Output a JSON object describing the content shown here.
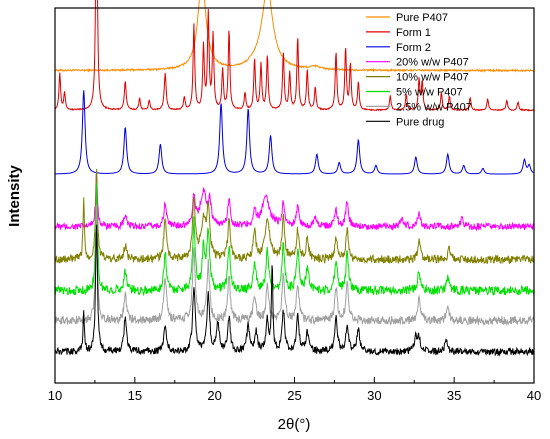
{
  "chart_data": {
    "type": "line",
    "title": "",
    "xlabel": "2θ(°)",
    "ylabel": "Intensity",
    "xlim": [
      10,
      40
    ],
    "xticks": [
      "10",
      "15",
      "20",
      "25",
      "30",
      "35",
      "40"
    ],
    "y_ticks_shown": false,
    "grid": false,
    "legend_position": "top-right",
    "series": [
      {
        "name": "Pure P407",
        "color": "#FF8C00",
        "baseline": 2.2,
        "noise": 0.03,
        "peaks": [
          [
            19.2,
            3.2,
            0.3
          ],
          [
            23.3,
            2.85,
            0.42
          ],
          [
            26.3,
            0.1,
            0.4
          ],
          [
            22.5,
            0.12,
            0.4
          ]
        ]
      },
      {
        "name": "Form 1",
        "color": "#E00000",
        "baseline": 3.6,
        "noise": 0.02,
        "peaks": [
          [
            10.3,
            1.3,
            0.06
          ],
          [
            10.6,
            0.6,
            0.06
          ],
          [
            12.6,
            8.75,
            0.06
          ],
          [
            14.4,
            1.0,
            0.07
          ],
          [
            15.3,
            0.4,
            0.06
          ],
          [
            15.9,
            0.35,
            0.06
          ],
          [
            16.9,
            1.3,
            0.07
          ],
          [
            18.1,
            0.45,
            0.06
          ],
          [
            18.7,
            3.0,
            0.06
          ],
          [
            19.3,
            2.2,
            0.06
          ],
          [
            19.6,
            3.35,
            0.06
          ],
          [
            19.9,
            2.6,
            0.06
          ],
          [
            20.5,
            1.4,
            0.06
          ],
          [
            20.9,
            2.8,
            0.06
          ],
          [
            21.9,
            0.6,
            0.06
          ],
          [
            22.5,
            1.8,
            0.06
          ],
          [
            22.9,
            1.6,
            0.06
          ],
          [
            23.3,
            1.9,
            0.06
          ],
          [
            24.3,
            2.0,
            0.06
          ],
          [
            24.7,
            1.3,
            0.06
          ],
          [
            25.2,
            2.55,
            0.06
          ],
          [
            25.8,
            1.4,
            0.06
          ],
          [
            26.3,
            0.8,
            0.06
          ],
          [
            27.6,
            2.05,
            0.06
          ],
          [
            28.2,
            2.15,
            0.06
          ],
          [
            28.5,
            1.6,
            0.06
          ],
          [
            29.0,
            1.0,
            0.06
          ],
          [
            31.0,
            0.5,
            0.06
          ],
          [
            32.0,
            0.55,
            0.06
          ],
          [
            32.8,
            1.05,
            0.06
          ],
          [
            33.0,
            1.0,
            0.06
          ],
          [
            34.2,
            0.6,
            0.06
          ],
          [
            34.7,
            0.5,
            0.06
          ],
          [
            36.0,
            0.45,
            0.06
          ],
          [
            37.1,
            0.4,
            0.06
          ],
          [
            38.3,
            0.35,
            0.06
          ],
          [
            39.0,
            0.3,
            0.06
          ]
        ]
      },
      {
        "name": "Form 2",
        "color": "#0000E0",
        "baseline": 5.85,
        "noise": 0.0,
        "peaks": [
          [
            11.8,
            2.95,
            0.1
          ],
          [
            14.4,
            1.65,
            0.1
          ],
          [
            16.6,
            1.05,
            0.1
          ],
          [
            20.4,
            2.5,
            0.1
          ],
          [
            22.1,
            2.3,
            0.1
          ],
          [
            23.5,
            1.35,
            0.1
          ],
          [
            26.4,
            0.7,
            0.1
          ],
          [
            27.8,
            0.4,
            0.1
          ],
          [
            29.0,
            1.2,
            0.1
          ],
          [
            30.1,
            0.3,
            0.1
          ],
          [
            32.6,
            0.6,
            0.1
          ],
          [
            34.6,
            0.7,
            0.1
          ],
          [
            35.6,
            0.3,
            0.1
          ],
          [
            36.8,
            0.2,
            0.1
          ],
          [
            39.4,
            0.5,
            0.1
          ],
          [
            39.7,
            0.3,
            0.1
          ]
        ]
      },
      {
        "name": "20% w/w P407",
        "color": "#FF00FF",
        "baseline": 7.7,
        "noise": 0.12,
        "peaks": [
          [
            12.6,
            1.9,
            0.07
          ],
          [
            14.4,
            0.4,
            0.1
          ],
          [
            16.9,
            0.8,
            0.1
          ],
          [
            18.7,
            1.0,
            0.1
          ],
          [
            19.3,
            1.2,
            0.25
          ],
          [
            19.7,
            0.7,
            0.1
          ],
          [
            20.9,
            0.9,
            0.1
          ],
          [
            22.5,
            0.5,
            0.1
          ],
          [
            23.2,
            1.0,
            0.3
          ],
          [
            24.3,
            0.8,
            0.1
          ],
          [
            25.2,
            0.7,
            0.1
          ],
          [
            26.3,
            0.4,
            0.1
          ],
          [
            27.6,
            0.6,
            0.1
          ],
          [
            28.3,
            0.9,
            0.1
          ],
          [
            31.7,
            0.3,
            0.1
          ],
          [
            32.8,
            0.5,
            0.1
          ],
          [
            35.5,
            0.3,
            0.1
          ]
        ]
      },
      {
        "name": "10% w/w P407",
        "color": "#808000",
        "baseline": 8.85,
        "noise": 0.14,
        "peaks": [
          [
            11.8,
            2.2,
            0.05
          ],
          [
            12.6,
            3.2,
            0.07
          ],
          [
            14.4,
            0.5,
            0.1
          ],
          [
            16.9,
            1.4,
            0.1
          ],
          [
            18.7,
            2.0,
            0.1
          ],
          [
            19.3,
            1.3,
            0.2
          ],
          [
            19.6,
            1.7,
            0.1
          ],
          [
            20.9,
            1.3,
            0.1
          ],
          [
            22.5,
            0.9,
            0.1
          ],
          [
            23.3,
            1.3,
            0.2
          ],
          [
            24.3,
            1.4,
            0.1
          ],
          [
            25.2,
            1.0,
            0.1
          ],
          [
            25.8,
            0.7,
            0.1
          ],
          [
            27.6,
            0.7,
            0.1
          ],
          [
            28.3,
            1.0,
            0.1
          ],
          [
            32.8,
            0.6,
            0.1
          ],
          [
            34.7,
            0.4,
            0.1
          ]
        ]
      },
      {
        "name": "5% w/w P407",
        "color": "#00E000",
        "baseline": 9.95,
        "noise": 0.16,
        "peaks": [
          [
            12.6,
            3.7,
            0.07
          ],
          [
            14.4,
            0.7,
            0.1
          ],
          [
            16.9,
            1.3,
            0.1
          ],
          [
            18.7,
            2.4,
            0.1
          ],
          [
            19.3,
            1.4,
            0.1
          ],
          [
            19.6,
            2.1,
            0.1
          ],
          [
            20.9,
            1.5,
            0.1
          ],
          [
            22.5,
            1.0,
            0.1
          ],
          [
            23.3,
            1.4,
            0.1
          ],
          [
            24.3,
            1.6,
            0.1
          ],
          [
            25.2,
            1.4,
            0.1
          ],
          [
            25.8,
            0.8,
            0.1
          ],
          [
            27.6,
            1.1,
            0.1
          ],
          [
            28.3,
            1.3,
            0.1
          ],
          [
            32.8,
            0.7,
            0.1
          ],
          [
            34.6,
            0.5,
            0.1
          ]
        ]
      },
      {
        "name": "2.5% w/w P407",
        "color": "#A0A0A0",
        "baseline": 11.0,
        "noise": 0.15,
        "peaks": [
          [
            12.6,
            4.2,
            0.07
          ],
          [
            14.4,
            0.9,
            0.1
          ],
          [
            16.9,
            1.5,
            0.1
          ],
          [
            18.7,
            2.6,
            0.1
          ],
          [
            19.6,
            2.0,
            0.1
          ],
          [
            20.9,
            1.5,
            0.1
          ],
          [
            22.5,
            0.9,
            0.1
          ],
          [
            23.3,
            1.2,
            0.1
          ],
          [
            24.3,
            1.6,
            0.1
          ],
          [
            25.2,
            1.3,
            0.1
          ],
          [
            27.6,
            1.2,
            0.1
          ],
          [
            28.3,
            1.3,
            0.1
          ],
          [
            32.8,
            0.8,
            0.1
          ],
          [
            34.6,
            0.5,
            0.1
          ]
        ]
      },
      {
        "name": "Pure drug",
        "color": "#000000",
        "baseline": 12.1,
        "noise": 0.12,
        "peaks": [
          [
            11.8,
            1.4,
            0.05
          ],
          [
            12.6,
            4.5,
            0.07
          ],
          [
            14.4,
            1.2,
            0.1
          ],
          [
            16.9,
            0.9,
            0.1
          ],
          [
            18.7,
            2.2,
            0.1
          ],
          [
            19.6,
            2.0,
            0.1
          ],
          [
            20.2,
            1.0,
            0.1
          ],
          [
            20.9,
            1.2,
            0.1
          ],
          [
            22.1,
            0.9,
            0.1
          ],
          [
            22.6,
            0.7,
            0.1
          ],
          [
            23.3,
            1.1,
            0.1
          ],
          [
            23.6,
            3.1,
            0.05
          ],
          [
            24.3,
            1.4,
            0.1
          ],
          [
            25.2,
            1.3,
            0.1
          ],
          [
            25.8,
            0.7,
            0.1
          ],
          [
            27.6,
            1.2,
            0.1
          ],
          [
            28.3,
            0.9,
            0.1
          ],
          [
            29.0,
            0.8,
            0.1
          ],
          [
            32.6,
            0.5,
            0.1
          ],
          [
            32.8,
            0.5,
            0.1
          ],
          [
            34.5,
            0.4,
            0.1
          ]
        ]
      }
    ]
  }
}
